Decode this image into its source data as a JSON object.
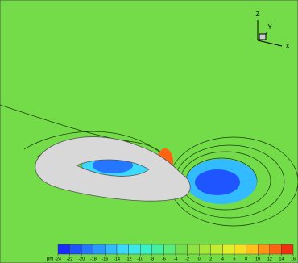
{
  "colorbar": {
    "label": "phi",
    "ticks": [
      -24,
      -22,
      -20,
      -18,
      -16,
      -14,
      -12,
      -10,
      -8,
      -6,
      -4,
      -2,
      0,
      2,
      4,
      6,
      8,
      10,
      12,
      14,
      16
    ],
    "colors": [
      "#1a2cff",
      "#1f55ff",
      "#2577ff",
      "#2b99ff",
      "#33bbff",
      "#3cd9ff",
      "#3fe8e8",
      "#3cf0c8",
      "#44f0a0",
      "#5aeb7a",
      "#72e04e",
      "#8ee244",
      "#a8e63c",
      "#c4ea34",
      "#e0ee2c",
      "#f5e024",
      "#ffc01e",
      "#ff9418",
      "#ff6414",
      "#f03010"
    ]
  },
  "axes": {
    "z": "Z",
    "y": "Y",
    "x": "X"
  }
}
